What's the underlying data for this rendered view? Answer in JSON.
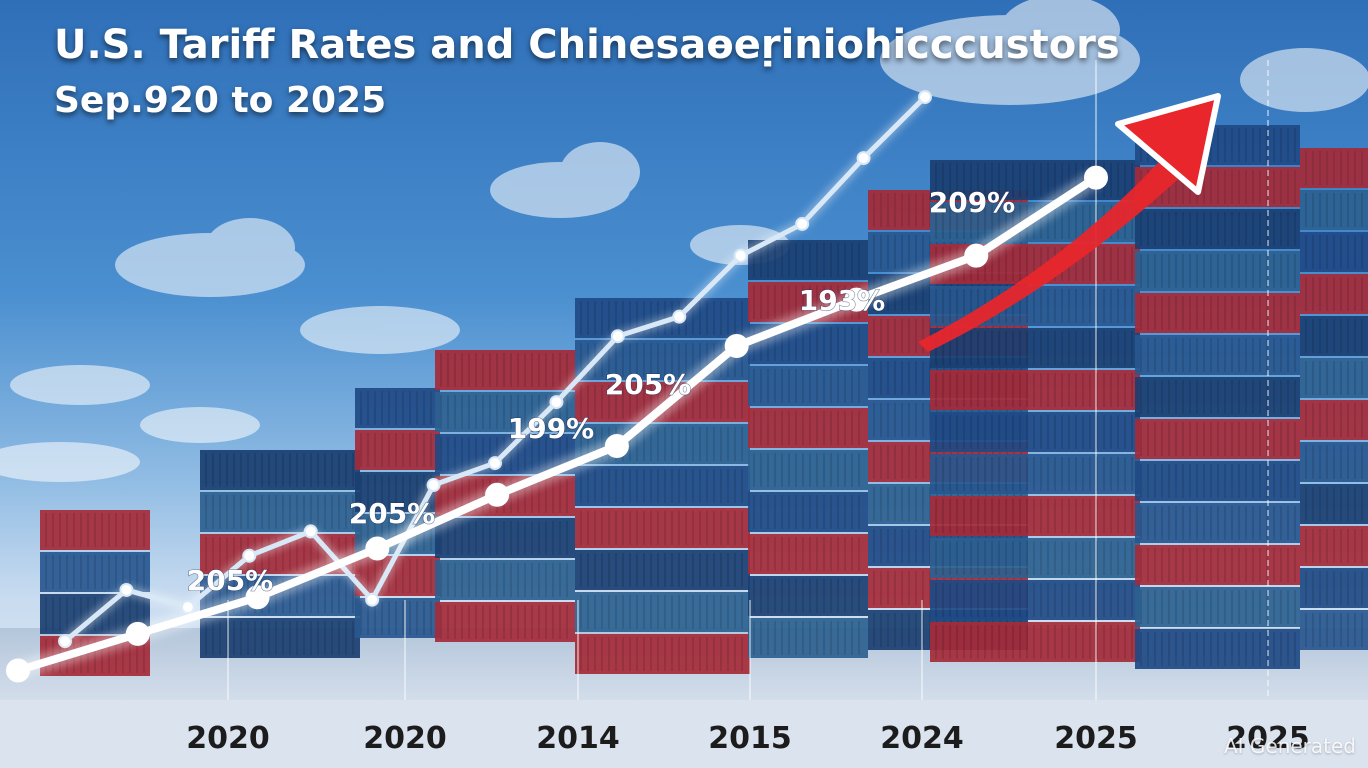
{
  "title": "U.S. Tariff Rates and Chinesaɵeṛiniohicccustors",
  "subtitle": "Sep.920 to 2025",
  "watermark": "AI Generated",
  "colors": {
    "sky_top": "#2f6fb8",
    "container_red": "#a52a38",
    "container_blue": "#1f4a86",
    "line_main": "#ffffff",
    "line_light": "#d8e8f7",
    "arrow": "#e8262c"
  },
  "chart_data": {
    "type": "line",
    "title": "U.S. Tariff Rates and Chinesaɵeṛiniohicccustors",
    "subtitle": "Sep.920 to 2025",
    "xlabel": "",
    "ylabel": "",
    "x_tick_labels": [
      "2020",
      "2020",
      "2014",
      "2015",
      "2024",
      "2025",
      "2025"
    ],
    "data_labels": [
      "205%",
      "205%",
      "199%",
      "205%",
      "193%",
      "209%"
    ],
    "grid": false,
    "legend": "none",
    "series": [
      {
        "values": [
          8,
          23,
          38,
          58,
          80,
          100,
          141,
          160,
          178,
          210
        ]
      },
      {
        "values": [
          20,
          41,
          34,
          55,
          65,
          37,
          84,
          93,
          118,
          145,
          153,
          178,
          191,
          218,
          243
        ]
      }
    ],
    "annotation": "trend-arrow"
  }
}
